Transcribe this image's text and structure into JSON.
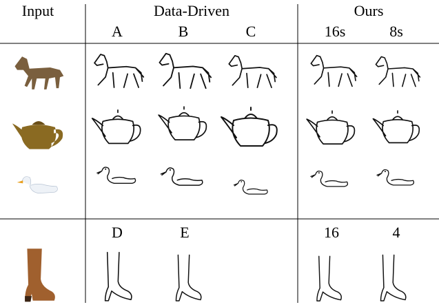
{
  "header": {
    "input": "Input",
    "data_driven": "Data-Driven",
    "ours": "Ours"
  },
  "columns": {
    "data_driven": [
      "A",
      "B",
      "C"
    ],
    "ours": [
      "16s",
      "8s"
    ]
  },
  "bottom_columns": {
    "data_driven": [
      "D",
      "E"
    ],
    "ours": [
      "16",
      "4"
    ]
  }
}
